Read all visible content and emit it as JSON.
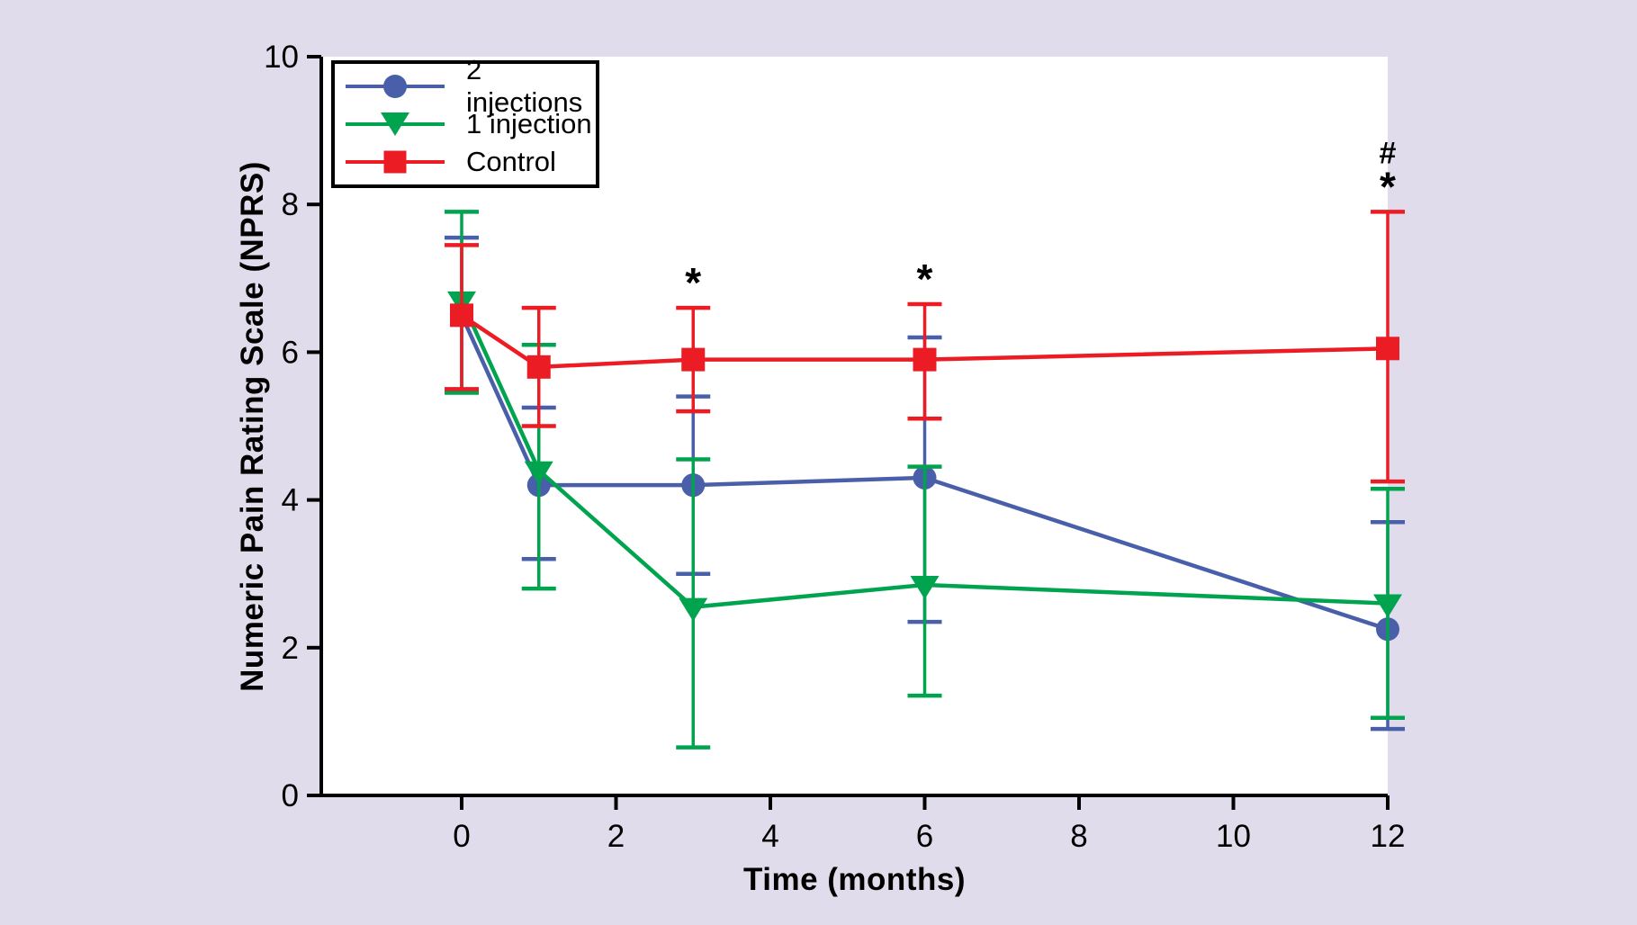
{
  "figure": {
    "background_color": "#e1dcec",
    "plot_background_color": "#ffffff",
    "axis_color": "#000000"
  },
  "chart_data": {
    "type": "line",
    "title": "",
    "xlabel": "Time (months)",
    "ylabel": "Numeric Pain Rating Scale (NPRS)",
    "x": [
      0,
      1,
      3,
      6,
      12
    ],
    "x_ticks": [
      0,
      2,
      4,
      6,
      8,
      10,
      12
    ],
    "y_ticks": [
      0,
      2,
      4,
      6,
      8,
      10
    ],
    "xlim": [
      0,
      12
    ],
    "ylim": [
      0,
      10
    ],
    "grid": false,
    "legend_position": "top-left",
    "series": [
      {
        "name": "2 injections",
        "color": "#4a5fa9",
        "marker": "circle",
        "values": [
          6.5,
          4.2,
          4.2,
          4.3,
          2.25
        ],
        "err_low": [
          5.5,
          3.2,
          3.0,
          2.35,
          0.9
        ],
        "err_high": [
          7.55,
          5.25,
          5.4,
          6.2,
          3.7
        ]
      },
      {
        "name": "1 injection",
        "color": "#00a44f",
        "marker": "triangle-down",
        "values": [
          6.7,
          4.4,
          2.55,
          2.85,
          2.6
        ],
        "err_low": [
          5.45,
          2.8,
          0.65,
          1.35,
          1.05
        ],
        "err_high": [
          7.9,
          6.1,
          4.55,
          4.45,
          4.15
        ]
      },
      {
        "name": "Control",
        "color": "#ec1c24",
        "marker": "square",
        "values": [
          6.5,
          5.8,
          5.9,
          5.9,
          6.05
        ],
        "err_low": [
          5.5,
          5.0,
          5.2,
          5.1,
          4.25
        ],
        "err_high": [
          7.45,
          6.6,
          6.6,
          6.65,
          7.9
        ]
      }
    ],
    "annotations": [
      {
        "x": 3,
        "labels": [
          "*"
        ]
      },
      {
        "x": 6,
        "labels": [
          "*"
        ]
      },
      {
        "x": 12,
        "labels": [
          "#",
          "*"
        ]
      }
    ]
  }
}
